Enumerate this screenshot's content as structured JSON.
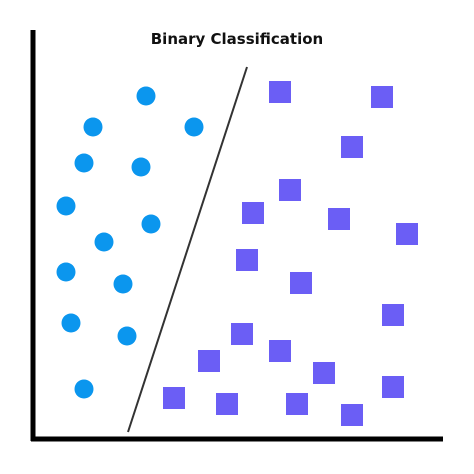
{
  "title": "Binary Classification",
  "colors": {
    "class_a": "#0B96EE",
    "class_b": "#6B5EF5",
    "axes": "#000000",
    "boundary": "#333333"
  },
  "icons": {
    "class_a": "circle",
    "class_b": "square"
  }
}
